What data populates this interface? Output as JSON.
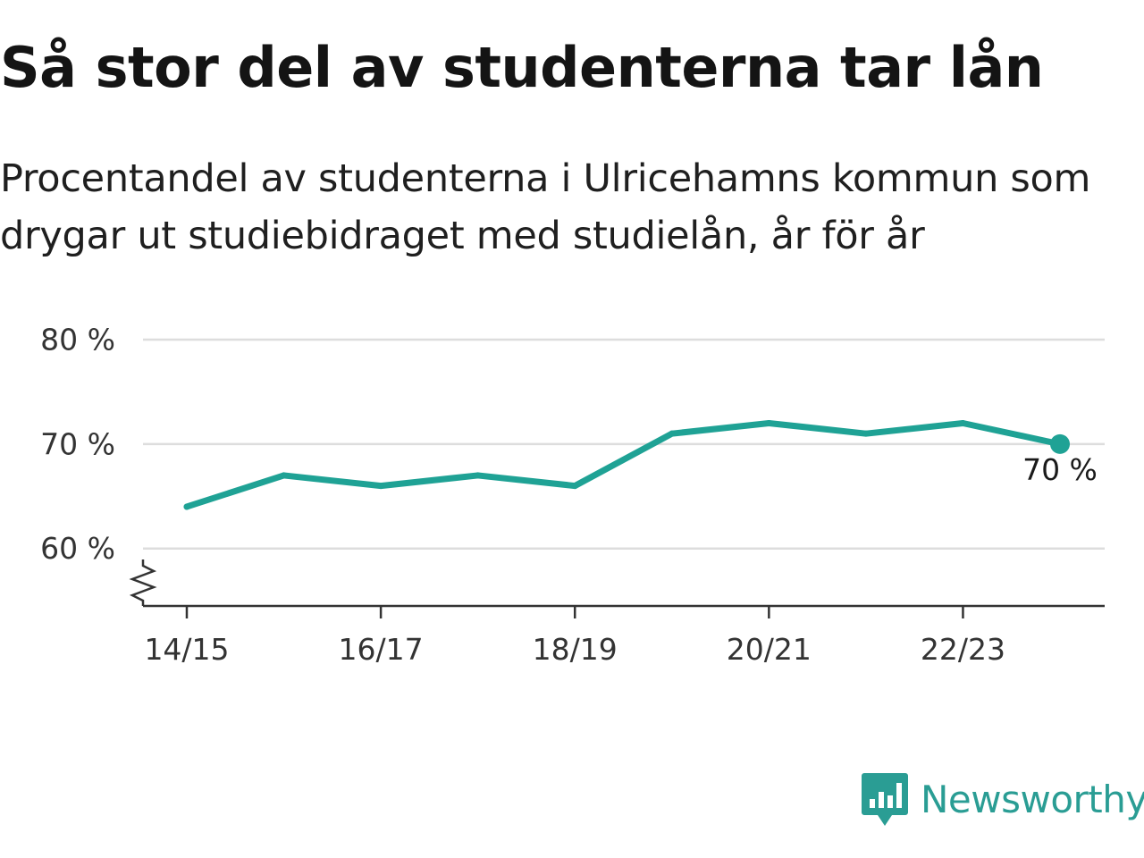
{
  "title": "Så stor del av studenterna tar lån",
  "subtitle": "Procentandel av studenterna i Ulricehamns kommun som drygar ut studiebidraget med studielån, år för år",
  "brand": {
    "name": "Newsworthy",
    "icon": "bar-chart-speech-bubble-icon",
    "color": "#1fa295"
  },
  "chart_data": {
    "type": "line",
    "x": [
      "14/15",
      "15/16",
      "16/17",
      "17/18",
      "18/19",
      "19/20",
      "20/21",
      "21/22",
      "22/23",
      "23/24"
    ],
    "x_tick_labels": [
      "14/15",
      "16/17",
      "18/19",
      "20/21",
      "22/23"
    ],
    "series": [
      {
        "values": [
          64,
          67,
          66,
          67,
          66,
          71,
          72,
          71,
          72,
          70
        ],
        "color": "#1fa295"
      }
    ],
    "y_ticks": [
      60,
      70,
      80
    ],
    "y_tick_labels": [
      "60 %",
      "70 %",
      "80 %"
    ],
    "ylim": [
      54.5,
      80
    ],
    "axis_break": true,
    "grid": true,
    "end_label": "70 %",
    "title": "Så stor del av studenterna tar lån",
    "xlabel": "",
    "ylabel": ""
  }
}
